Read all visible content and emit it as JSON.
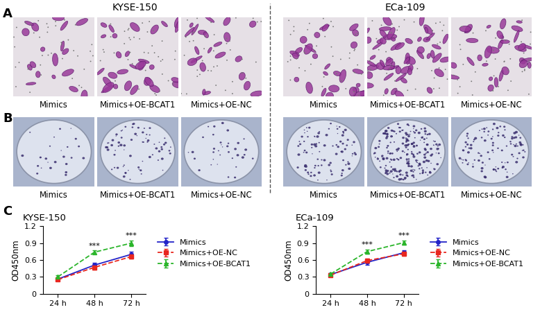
{
  "panels": {
    "letters": [
      "A",
      "B",
      "C"
    ],
    "cell_lines": [
      "KYSE-150",
      "ECa-109"
    ],
    "image_captions": [
      "Mimics",
      "Mimics+OE-BCAT1",
      "Mimics+OE-NC"
    ]
  },
  "chart_data": [
    {
      "type": "line",
      "title": "KYSE-150",
      "y_label": "OD450nm",
      "categories": [
        "24 h",
        "48 h",
        "72 h"
      ],
      "ylim": [
        0,
        1.2
      ],
      "yticks": [
        0,
        0.3,
        0.6,
        0.9,
        1.2
      ],
      "legend": "center left",
      "series": [
        {
          "name": "Mimics",
          "color": "#2323c8",
          "marker": "circle",
          "line_style": "solid",
          "values": [
            0.26,
            0.51,
            0.7
          ],
          "errors": [
            0.02,
            0.04,
            0.05
          ]
        },
        {
          "name": "Mimics+OE-NC",
          "color": "#e8271f",
          "marker": "square",
          "line_style": "dashed",
          "values": [
            0.25,
            0.47,
            0.66
          ],
          "errors": [
            0.02,
            0.04,
            0.04
          ]
        },
        {
          "name": "Mimics+OE-BCAT1",
          "color": "#2ab52a",
          "marker": "triangle",
          "line_style": "dashed",
          "values": [
            0.3,
            0.74,
            0.9
          ],
          "errors": [
            0.03,
            0.03,
            0.05
          ]
        }
      ],
      "annotations": [
        {
          "text": "***",
          "x": "48 h"
        },
        {
          "text": "***",
          "x": "72 h"
        }
      ]
    },
    {
      "type": "line",
      "title": "ECa-109",
      "y_label": "OD450nm",
      "categories": [
        "24 h",
        "48 h",
        "72 h"
      ],
      "ylim": [
        0,
        1.2
      ],
      "yticks": [
        0,
        0.3,
        0.6,
        0.9,
        1.2
      ],
      "legend": "center left",
      "series": [
        {
          "name": "Mimics",
          "color": "#2323c8",
          "marker": "circle",
          "line_style": "solid",
          "values": [
            0.34,
            0.56,
            0.73
          ],
          "errors": [
            0.02,
            0.04,
            0.04
          ]
        },
        {
          "name": "Mimics+OE-NC",
          "color": "#e8271f",
          "marker": "square",
          "line_style": "dashed",
          "values": [
            0.33,
            0.59,
            0.71
          ],
          "errors": [
            0.02,
            0.03,
            0.03
          ]
        },
        {
          "name": "Mimics+OE-BCAT1",
          "color": "#2ab52a",
          "marker": "triangle",
          "line_style": "dashed",
          "values": [
            0.35,
            0.75,
            0.91
          ],
          "errors": [
            0.02,
            0.04,
            0.04
          ]
        }
      ],
      "annotations": [
        {
          "text": "***",
          "x": "48 h"
        },
        {
          "text": "***",
          "x": "72 h"
        }
      ]
    }
  ]
}
